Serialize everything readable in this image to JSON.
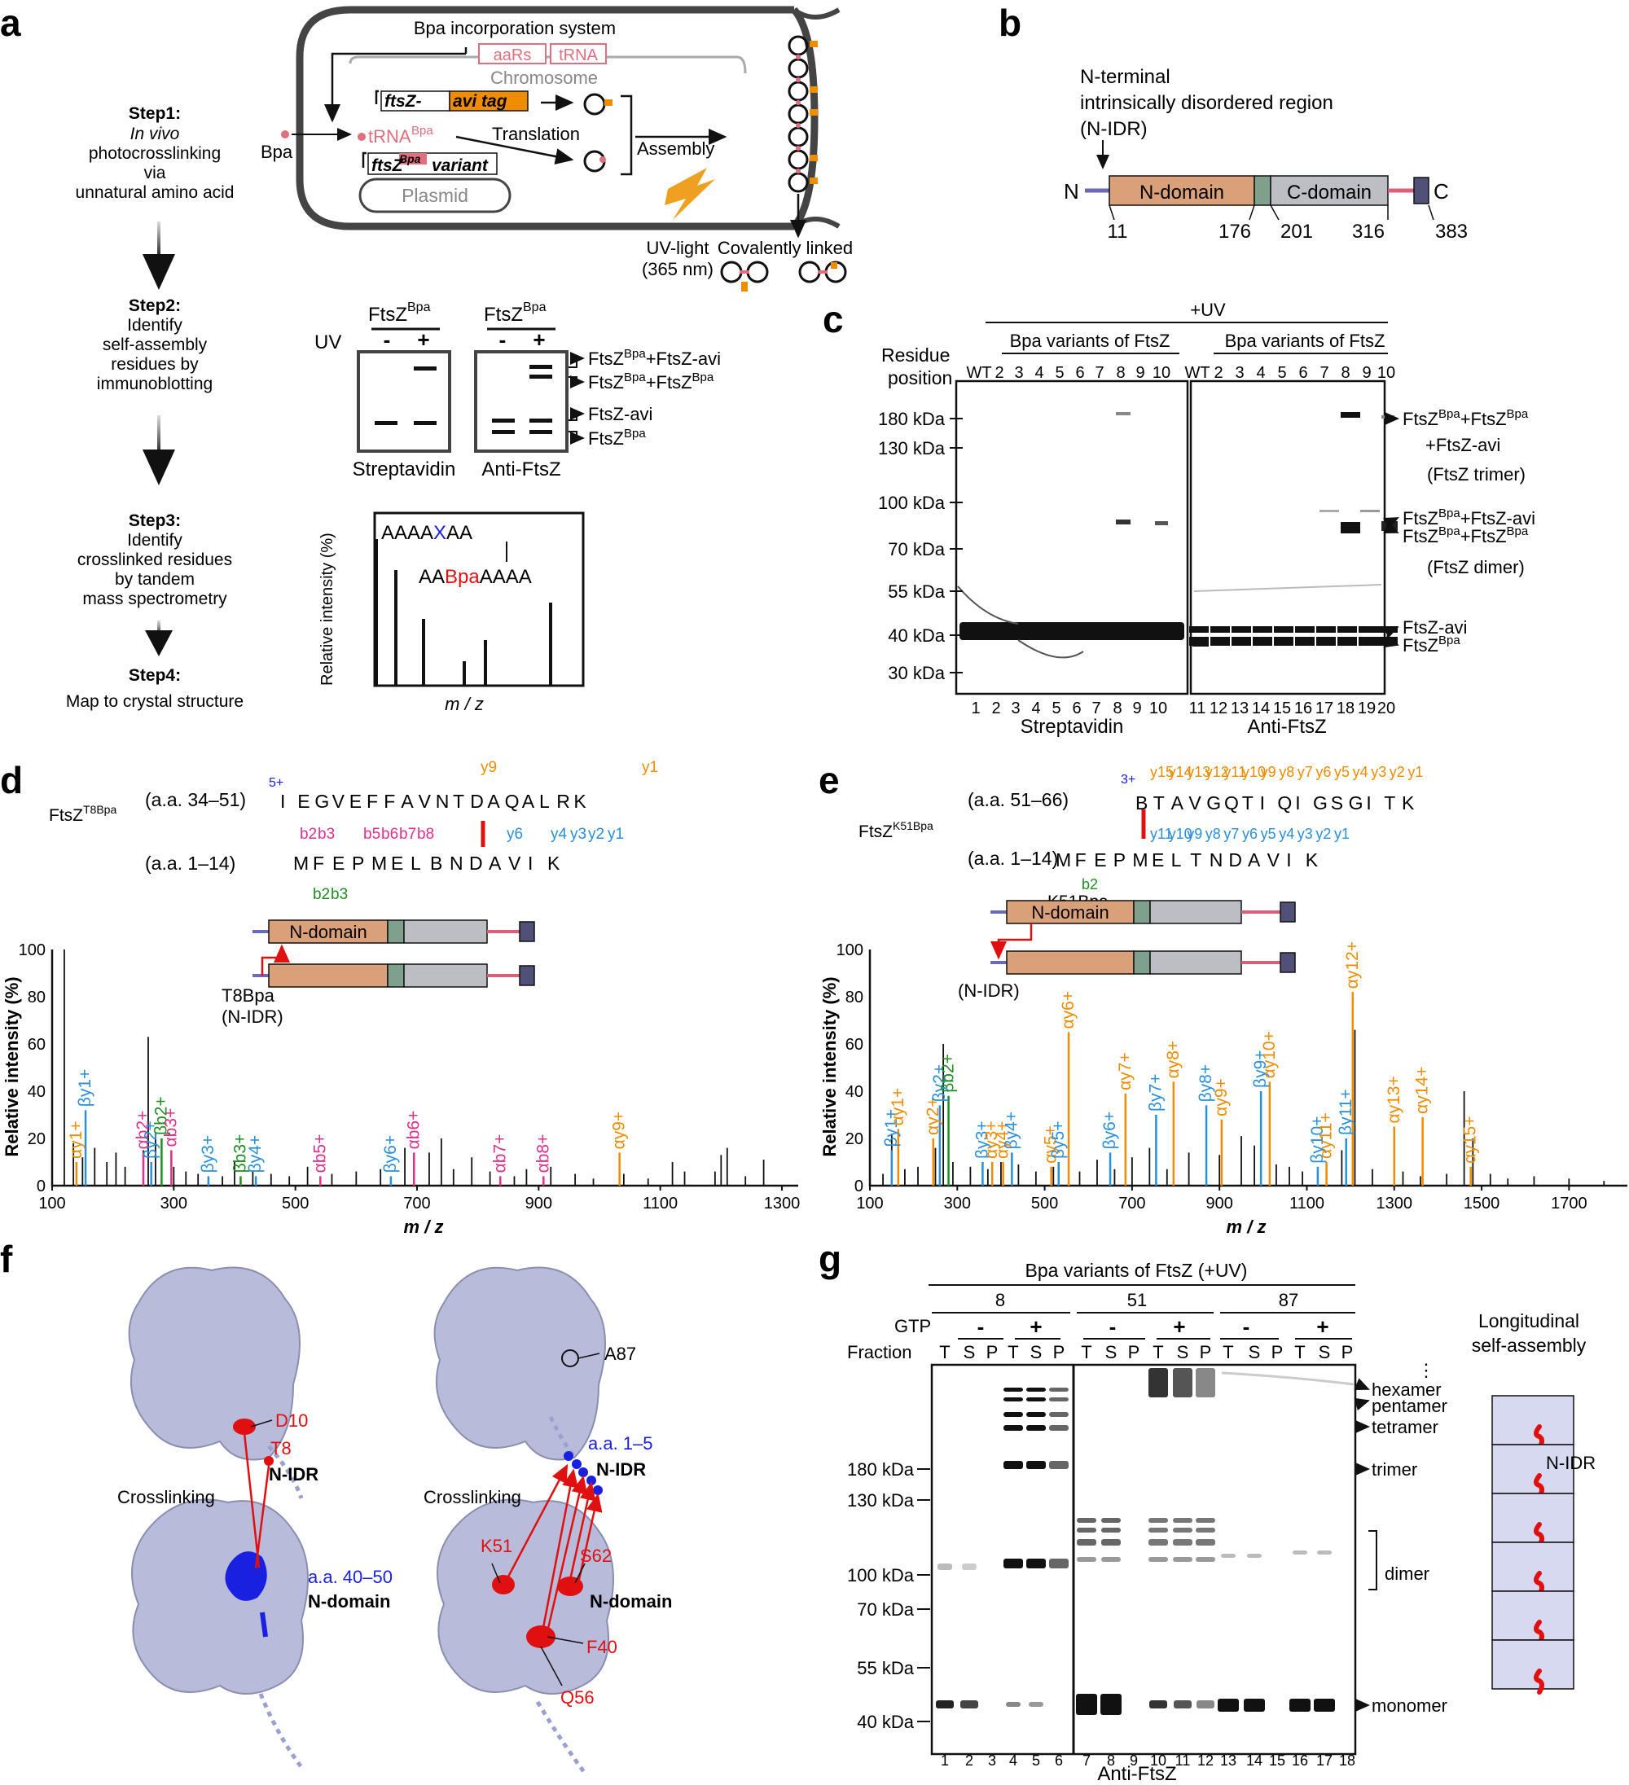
{
  "panel_letters": {
    "a": "a",
    "b": "b",
    "c": "c",
    "d": "d",
    "e": "e",
    "f": "f",
    "g": "g"
  },
  "panel_a": {
    "steps": [
      {
        "title": "Step1:",
        "lines": [
          "In vivo",
          "photocrosslinking",
          "via",
          "unnatural amino acid"
        ]
      },
      {
        "title": "Step2:",
        "lines": [
          "Identify",
          "self-assembly",
          "residues by",
          "immunoblotting"
        ]
      },
      {
        "title": "Step3:",
        "lines": [
          "Identify",
          "crosslinked residues",
          "by tandem",
          "mass spectrometry"
        ]
      },
      {
        "title": "Step4:",
        "lines": [
          "Map to crystal structure"
        ]
      }
    ],
    "cell": {
      "incorporation_system": "Bpa incorporation system",
      "aars": "aaRs",
      "trna": "tRNA",
      "chromosome": "Chromosome",
      "ftsz_avi_main": "ftsZ-",
      "ftsz_avi_tag": "avi tag",
      "bpa": "Bpa",
      "trna_bpa": "tRNA",
      "trna_bpa_sup": "Bpa",
      "translation": "Translation",
      "assembly": "Assembly",
      "ftsz_variant_main": "ftsZ",
      "ftsz_variant_sup": "Bpa",
      "ftsz_variant_tail": "variant",
      "plasmid": "Plasmid",
      "uv_light": "UV-light",
      "uv_wavelength": "(365 nm)",
      "covalently_linked": "Covalently linked"
    },
    "blot": {
      "group_label": "FtsZ",
      "group_sup": "Bpa",
      "uv": "UV",
      "minus": "-",
      "plus": "+",
      "streptavidin": "Streptavidin",
      "anti_ftsz": "Anti-FtsZ",
      "bands": [
        {
          "main": "FtsZ",
          "sup": "Bpa",
          "tail": "+FtsZ-avi"
        },
        {
          "main": "FtsZ",
          "sup": "Bpa",
          "tail": "+FtsZ",
          "sup2": "Bpa"
        },
        {
          "main": "FtsZ-avi",
          "sup": "",
          "tail": ""
        },
        {
          "main": "FtsZ",
          "sup": "Bpa",
          "tail": ""
        }
      ]
    },
    "ms": {
      "top_seq_a": "AAAA",
      "top_seq_x": "X",
      "top_seq_b": "AA",
      "bottom_seq_a": "AA",
      "bottom_seq_bpa": "Bpa",
      "bottom_seq_b": "AAAA",
      "ylabel": "Relative intensity (%)",
      "xlabel": "m / z"
    }
  },
  "panel_b": {
    "title_lines": [
      "N-terminal",
      "intrinsically disordered region",
      "(N-IDR)"
    ],
    "n": "N",
    "c": "C",
    "n_domain": "N-domain",
    "c_domain": "C-domain",
    "positions": [
      "11",
      "176",
      "201",
      "316",
      "383"
    ]
  },
  "panel_c": {
    "uv": "+UV",
    "group": "Bpa variants of FtsZ",
    "residue_label": [
      "Residue",
      "position"
    ],
    "lanes_top": [
      "WT",
      "2",
      "3",
      "4",
      "5",
      "6",
      "7",
      "8",
      "9",
      "10"
    ],
    "markers": [
      "180 kDa",
      "130 kDa",
      "100 kDa",
      "70 kDa",
      "55 kDa",
      "40 kDa",
      "30 kDa"
    ],
    "lane_numbers_left": [
      "1",
      "2",
      "3",
      "4",
      "5",
      "6",
      "7",
      "8",
      "9",
      "10"
    ],
    "lane_numbers_right": [
      "11",
      "12",
      "13",
      "14",
      "15",
      "16",
      "17",
      "18",
      "19",
      "20"
    ],
    "bottom_left": "Streptavidin",
    "bottom_right": "Anti-FtsZ",
    "annotations": {
      "trimer_line1_main": "FtsZ",
      "trimer_line1_sup": "Bpa",
      "trimer_line1_mid": "+FtsZ",
      "trimer_line1_sup2": "Bpa",
      "trimer_line2": "+FtsZ-avi",
      "trimer_line3": "(FtsZ trimer)",
      "dimer_line1_main": "FtsZ",
      "dimer_line1_sup": "Bpa",
      "dimer_line1_tail": "+FtsZ-avi",
      "dimer_line2_main": "FtsZ",
      "dimer_line2_sup": "Bpa",
      "dimer_line2_mid": "+FtsZ",
      "dimer_line2_sup2": "Bpa",
      "dimer_line3": "(FtsZ dimer)",
      "avi": "FtsZ-avi",
      "bpa_main": "FtsZ",
      "bpa_sup": "Bpa"
    }
  },
  "panel_d": {
    "variant_main": "FtsZ",
    "variant_sup": "T8Bpa",
    "range_top": "(a.a. 34–51)",
    "range_bottom": "(a.a. 1–14)",
    "charge": "5+",
    "seq_top": [
      "I",
      "E",
      "G",
      "V",
      "E",
      "F",
      "F",
      "A",
      "V",
      "N",
      "T",
      "D",
      "A",
      "Q",
      "A",
      "L",
      "R",
      "K"
    ],
    "seq_bottom": [
      "M",
      "F",
      "E",
      "P",
      "M",
      "E",
      "L",
      "B",
      "N",
      "D",
      "A",
      "V",
      "I",
      "K"
    ],
    "frag_top_b": [
      "b2",
      "b3",
      "b5",
      "b6",
      "b7",
      "b8"
    ],
    "frag_top_y": [
      "y6",
      "y4",
      "y3",
      "y2",
      "y1"
    ],
    "frag_top_y_orange": [
      "y9",
      "y1"
    ],
    "frag_bottom_b": [
      "b2",
      "b3"
    ],
    "domain": "N-domain",
    "t8bpa": "T8Bpa",
    "nidr": "(N-IDR)",
    "ylabel": "Relative intensity (%)",
    "xlabel": "m / z",
    "yticks": [
      "0",
      "20",
      "40",
      "60",
      "80",
      "100"
    ],
    "xticks": [
      "100",
      "300",
      "500",
      "700",
      "900",
      "1100",
      "1300"
    ],
    "peak_labels": [
      "αy1+",
      "βy1+",
      "αb2+",
      "βy2+",
      "βb2+",
      "αb3+",
      "βy3+",
      "βb3+",
      "βy4+",
      "αb5+",
      "βy6+",
      "αb6+",
      "αb7+",
      "αb8+",
      "αy9+"
    ]
  },
  "panel_e": {
    "variant_main": "FtsZ",
    "variant_sup": "K51Bpa",
    "range_top": "(a.a. 51–66)",
    "range_bottom": "(a.a. 1–14)",
    "charge": "3+",
    "seq_top": [
      "B",
      "T",
      "A",
      "V",
      "G",
      "Q",
      "T",
      "I",
      "Q",
      "I",
      "G",
      "S",
      "G",
      "I",
      "T",
      "K"
    ],
    "seq_bottom": [
      "M",
      "F",
      "E",
      "P",
      "M",
      "E",
      "L",
      "T",
      "N",
      "D",
      "A",
      "V",
      "I",
      "K"
    ],
    "frag_top": [
      "y15",
      "y14",
      "y13",
      "y12",
      "y11",
      "y10",
      "y9",
      "y8",
      "y7",
      "y6",
      "y5",
      "y4",
      "y3",
      "y2",
      "y1"
    ],
    "frag_mid": [
      "y11",
      "y10",
      "y9",
      "y8",
      "y7",
      "y6",
      "y5",
      "y4",
      "y3",
      "y2",
      "y1"
    ],
    "frag_bottom": [
      "b2"
    ],
    "k51bpa": "K51Bpa",
    "domain": "N-domain",
    "nidr": "(N-IDR)",
    "ylabel": "Relative intensity (%)",
    "xlabel": "m / z",
    "yticks": [
      "0",
      "20",
      "40",
      "60",
      "80",
      "100"
    ],
    "xticks": [
      "100",
      "300",
      "500",
      "700",
      "900",
      "1100",
      "1300",
      "1500",
      "1700"
    ],
    "peak_labels": [
      "βy1+",
      "αy1+",
      "αy2+",
      "βy2+",
      "βb2+",
      "βy3+",
      "αy3+",
      "αy4+",
      "βy4+",
      "αy5+",
      "βy5+",
      "αy6+",
      "βy6+",
      "αy7+",
      "βy7+",
      "αy8+",
      "βy8+",
      "αy9+",
      "βy9+",
      "αy10+",
      "βy10+",
      "αy11+",
      "βy11+",
      "αy12+",
      "αy13+",
      "αy14+",
      "αy15+"
    ]
  },
  "panel_f": {
    "left": {
      "d10": "D10",
      "t8": "T8",
      "nidr": "N-IDR",
      "crosslinking": "Crosslinking",
      "range": "a.a. 40–50",
      "ndomain": "N-domain"
    },
    "right": {
      "a87": "A87",
      "range": "a.a. 1–5",
      "nidr": "N-IDR",
      "crosslinking": "Crosslinking",
      "k51": "K51",
      "s62": "S62",
      "ndomain": "N-domain",
      "f40": "F40",
      "q56": "Q56"
    }
  },
  "panel_g": {
    "title": "Bpa variants of FtsZ (+UV)",
    "groups": [
      "8",
      "51",
      "87"
    ],
    "gtp": "GTP",
    "fraction": "Fraction",
    "minus": "-",
    "plus": "+",
    "fractions": [
      "T",
      "S",
      "P"
    ],
    "markers": [
      "180 kDa",
      "130 kDa",
      "100 kDa",
      "70 kDa",
      "55 kDa",
      "40 kDa"
    ],
    "lanes": [
      "1",
      "2",
      "3",
      "4",
      "5",
      "6",
      "7",
      "8",
      "9",
      "10",
      "11",
      "12",
      "13",
      "14",
      "15",
      "16",
      "17",
      "18"
    ],
    "bottom": "Anti-FtsZ",
    "bands": [
      "hexamer",
      "pentamer",
      "tetramer",
      "trimer",
      "dimer",
      "monomer"
    ],
    "dots": "⋮",
    "longitudinal": [
      "Longitudinal",
      "self-assembly"
    ],
    "nidr": "N-IDR"
  },
  "colors": {
    "orange": "#f08c00",
    "blue": "#2a8fdc",
    "magenta": "#e0318a",
    "green": "#1f8f1f",
    "red": "#e01010",
    "ndomain": "#d9a07a",
    "cdomain": "#bdbdc4",
    "linker": "#7fa08c",
    "purple": "#6a6ab8",
    "navy": "#505078",
    "pink": "#d9607a",
    "surface": "#b8bcda"
  }
}
